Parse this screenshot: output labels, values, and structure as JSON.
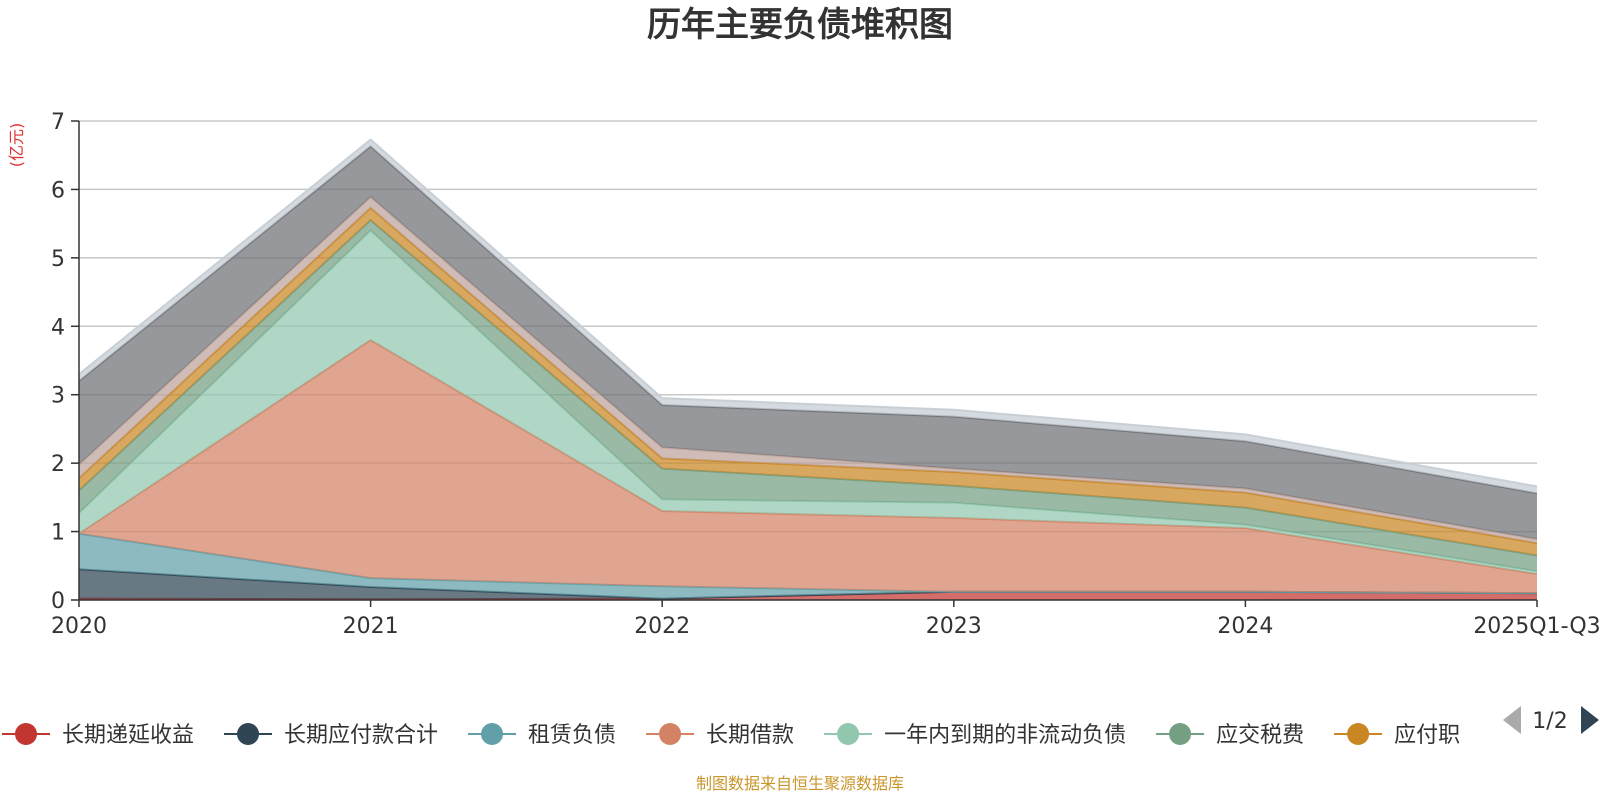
{
  "chart_data": {
    "type": "area",
    "stacked": true,
    "title": "历年主要负债堆积图",
    "unit_label": "(亿元)",
    "categories": [
      "2020",
      "2021",
      "2022",
      "2023",
      "2024",
      "2025Q1-Q3"
    ],
    "ylim": [
      0,
      7
    ],
    "yticks": [
      0,
      1,
      2,
      3,
      4,
      5,
      6,
      7
    ],
    "grid": true,
    "series": [
      {
        "name": "长期递延收益",
        "color": "#c23531",
        "values": [
          0.02,
          0.01,
          0.02,
          0.12,
          0.12,
          0.1
        ],
        "legend": true
      },
      {
        "name": "长期应付款合计",
        "color": "#2f4554",
        "values": [
          0.43,
          0.18,
          0.0,
          0.0,
          0.0,
          0.0
        ],
        "legend": true
      },
      {
        "name": "租赁负债",
        "color": "#61a0a8",
        "values": [
          0.52,
          0.13,
          0.18,
          0.0,
          0.0,
          0.0
        ],
        "legend": true
      },
      {
        "name": "长期借款",
        "color": "#d48265",
        "values": [
          0.0,
          3.48,
          1.1,
          1.08,
          0.93,
          0.28
        ],
        "legend": true
      },
      {
        "name": "一年内到期的非流动负债",
        "color": "#91c7ae",
        "values": [
          0.3,
          1.6,
          0.17,
          0.22,
          0.05,
          0.04
        ],
        "legend": true
      },
      {
        "name": "应交税费",
        "color": "#749f83",
        "values": [
          0.33,
          0.15,
          0.45,
          0.25,
          0.25,
          0.23
        ],
        "legend": true
      },
      {
        "name": "应付职",
        "color": "#ca8622",
        "values": [
          0.18,
          0.18,
          0.15,
          0.2,
          0.22,
          0.18
        ],
        "legend": true
      },
      {
        "name": "",
        "color": "#bda29a",
        "values": [
          0.2,
          0.16,
          0.16,
          0.05,
          0.06,
          0.06
        ],
        "legend": false
      },
      {
        "name": "",
        "color": "#6e7074",
        "values": [
          1.22,
          0.74,
          0.62,
          0.76,
          0.69,
          0.67
        ],
        "legend": false
      },
      {
        "name": "",
        "color": "#c4ccd3",
        "values": [
          0.1,
          0.1,
          0.1,
          0.1,
          0.1,
          0.1
        ],
        "legend": false
      }
    ],
    "legend_position": "bottom",
    "legend_page": "1/2",
    "source_note": "制图数据来自恒生聚源数据库"
  }
}
